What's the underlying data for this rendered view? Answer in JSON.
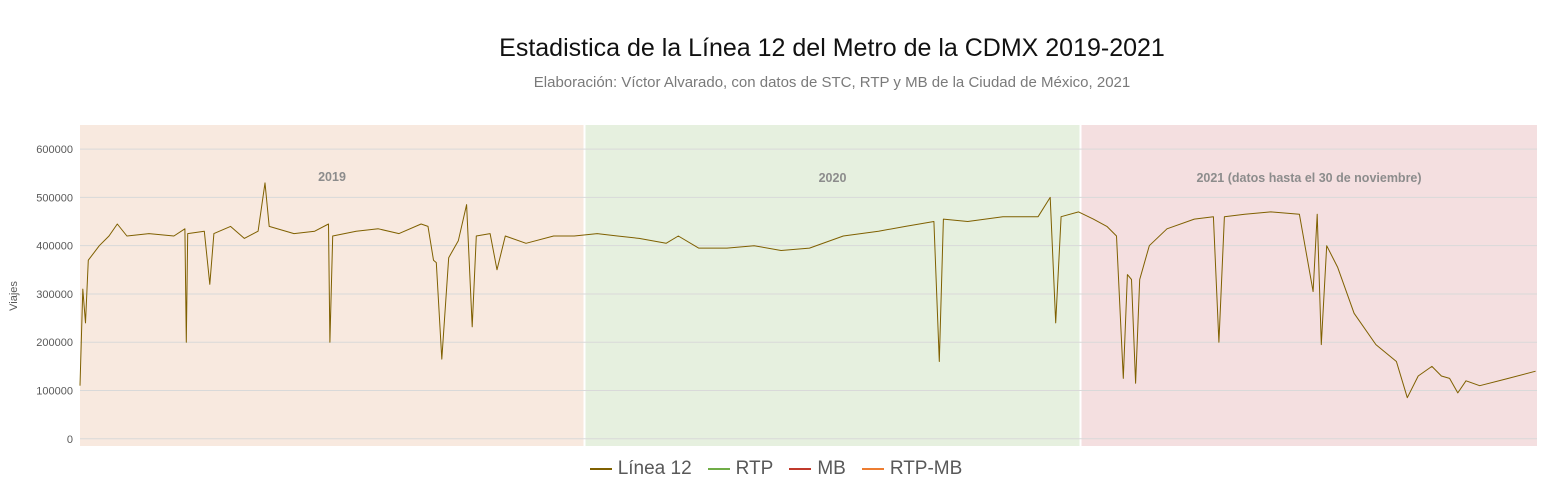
{
  "chart_data": {
    "type": "line",
    "title": "Estadistica de la Línea 12 del Metro de la CDMX 2019-2021",
    "subtitle": "Elaboración: Víctor Alvarado, con datos de STC, RTP y MB de la Ciudad de México, 2021",
    "xlabel": "",
    "ylabel": "Viajes",
    "ylim": [
      -15000,
      650000
    ],
    "yticks": [
      0,
      100000,
      200000,
      300000,
      400000,
      500000,
      600000
    ],
    "ytick_labels": [
      "0",
      "100000",
      "200000",
      "300000",
      "400000",
      "500000",
      "600000"
    ],
    "grid": true,
    "legend": "bottom",
    "x_unit": "day",
    "x_range": [
      "2019-01-01",
      "2021-11-30"
    ],
    "periods": [
      {
        "label": "2019",
        "start": "2019-01-01",
        "end": "2019-12-31",
        "color": "#f8e9df"
      },
      {
        "label": "2020",
        "start": "2020-01-01",
        "end": "2020-12-31",
        "color": "#e6f0df"
      },
      {
        "label": "2021 (datos hasta el 30 de noviembre)",
        "start": "2021-01-01",
        "end": "2021-11-30",
        "color": "#f4dfe0"
      }
    ],
    "series": [
      {
        "name": "Línea 12",
        "color": "#7f6000",
        "points": [
          [
            "2019-01-01",
            110000
          ],
          [
            "2019-01-03",
            310000
          ],
          [
            "2019-01-05",
            240000
          ],
          [
            "2019-01-07",
            370000
          ],
          [
            "2019-01-15",
            400000
          ],
          [
            "2019-01-22",
            420000
          ],
          [
            "2019-01-28",
            445000
          ],
          [
            "2019-02-04",
            420000
          ],
          [
            "2019-02-20",
            425000
          ],
          [
            "2019-03-10",
            420000
          ],
          [
            "2019-03-18",
            435000
          ],
          [
            "2019-03-19",
            200000
          ],
          [
            "2019-03-20",
            425000
          ],
          [
            "2019-04-01",
            430000
          ],
          [
            "2019-04-05",
            320000
          ],
          [
            "2019-04-08",
            425000
          ],
          [
            "2019-04-20",
            440000
          ],
          [
            "2019-04-30",
            415000
          ],
          [
            "2019-05-10",
            430000
          ],
          [
            "2019-05-15",
            530000
          ],
          [
            "2019-05-18",
            440000
          ],
          [
            "2019-06-05",
            425000
          ],
          [
            "2019-06-20",
            430000
          ],
          [
            "2019-06-30",
            445000
          ],
          [
            "2019-07-01",
            200000
          ],
          [
            "2019-07-03",
            420000
          ],
          [
            "2019-07-20",
            430000
          ],
          [
            "2019-08-05",
            435000
          ],
          [
            "2019-08-20",
            425000
          ],
          [
            "2019-09-05",
            445000
          ],
          [
            "2019-09-10",
            440000
          ],
          [
            "2019-09-14",
            370000
          ],
          [
            "2019-09-16",
            365000
          ],
          [
            "2019-09-20",
            165000
          ],
          [
            "2019-09-25",
            375000
          ],
          [
            "2019-10-02",
            410000
          ],
          [
            "2019-10-08",
            485000
          ],
          [
            "2019-10-12",
            232000
          ],
          [
            "2019-10-15",
            420000
          ],
          [
            "2019-10-25",
            425000
          ],
          [
            "2019-10-30",
            350000
          ],
          [
            "2019-11-05",
            420000
          ],
          [
            "2019-11-20",
            405000
          ],
          [
            "2019-12-10",
            420000
          ],
          [
            "2019-12-25",
            420000
          ],
          [
            "2020-01-10",
            425000
          ],
          [
            "2020-01-25",
            420000
          ],
          [
            "2020-02-10",
            415000
          ],
          [
            "2020-03-01",
            405000
          ],
          [
            "2020-03-10",
            420000
          ],
          [
            "2020-03-25",
            395000
          ],
          [
            "2020-04-15",
            395000
          ],
          [
            "2020-05-05",
            400000
          ],
          [
            "2020-05-25",
            390000
          ],
          [
            "2020-06-15",
            395000
          ],
          [
            "2020-07-10",
            420000
          ],
          [
            "2020-08-05",
            430000
          ],
          [
            "2020-08-25",
            440000
          ],
          [
            "2020-09-15",
            450000
          ],
          [
            "2020-09-19",
            160000
          ],
          [
            "2020-09-22",
            455000
          ],
          [
            "2020-10-10",
            450000
          ],
          [
            "2020-11-05",
            460000
          ],
          [
            "2020-12-01",
            460000
          ],
          [
            "2020-12-10",
            500000
          ],
          [
            "2020-12-14",
            240000
          ],
          [
            "2020-12-18",
            460000
          ],
          [
            "2020-12-31",
            470000
          ],
          [
            "2021-01-10",
            455000
          ],
          [
            "2021-01-20",
            440000
          ],
          [
            "2021-01-27",
            420000
          ],
          [
            "2021-02-01",
            125000
          ],
          [
            "2021-02-04",
            340000
          ],
          [
            "2021-02-07",
            330000
          ],
          [
            "2021-02-10",
            115000
          ],
          [
            "2021-02-13",
            330000
          ],
          [
            "2021-02-20",
            400000
          ],
          [
            "2021-03-05",
            435000
          ],
          [
            "2021-03-25",
            455000
          ],
          [
            "2021-04-08",
            460000
          ],
          [
            "2021-04-12",
            200000
          ],
          [
            "2021-04-16",
            460000
          ],
          [
            "2021-05-01",
            465000
          ],
          [
            "2021-05-20",
            470000
          ],
          [
            "2021-06-10",
            465000
          ],
          [
            "2021-06-20",
            305000
          ],
          [
            "2021-06-23",
            465000
          ],
          [
            "2021-06-26",
            195000
          ],
          [
            "2021-06-30",
            400000
          ],
          [
            "2021-07-08",
            355000
          ],
          [
            "2021-07-20",
            260000
          ],
          [
            "2021-08-05",
            195000
          ],
          [
            "2021-08-20",
            160000
          ],
          [
            "2021-08-28",
            85000
          ],
          [
            "2021-09-05",
            130000
          ],
          [
            "2021-09-15",
            150000
          ],
          [
            "2021-09-22",
            130000
          ],
          [
            "2021-09-28",
            125000
          ],
          [
            "2021-10-04",
            95000
          ],
          [
            "2021-10-10",
            120000
          ],
          [
            "2021-10-20",
            110000
          ],
          [
            "2021-11-10",
            125000
          ],
          [
            "2021-11-30",
            140000
          ]
        ]
      },
      {
        "name": "RTP",
        "color": "#70ad47",
        "points": []
      },
      {
        "name": "MB",
        "color": "#c0392b",
        "points": []
      },
      {
        "name": "RTP-MB",
        "color": "#ed7d31",
        "points": []
      }
    ]
  }
}
